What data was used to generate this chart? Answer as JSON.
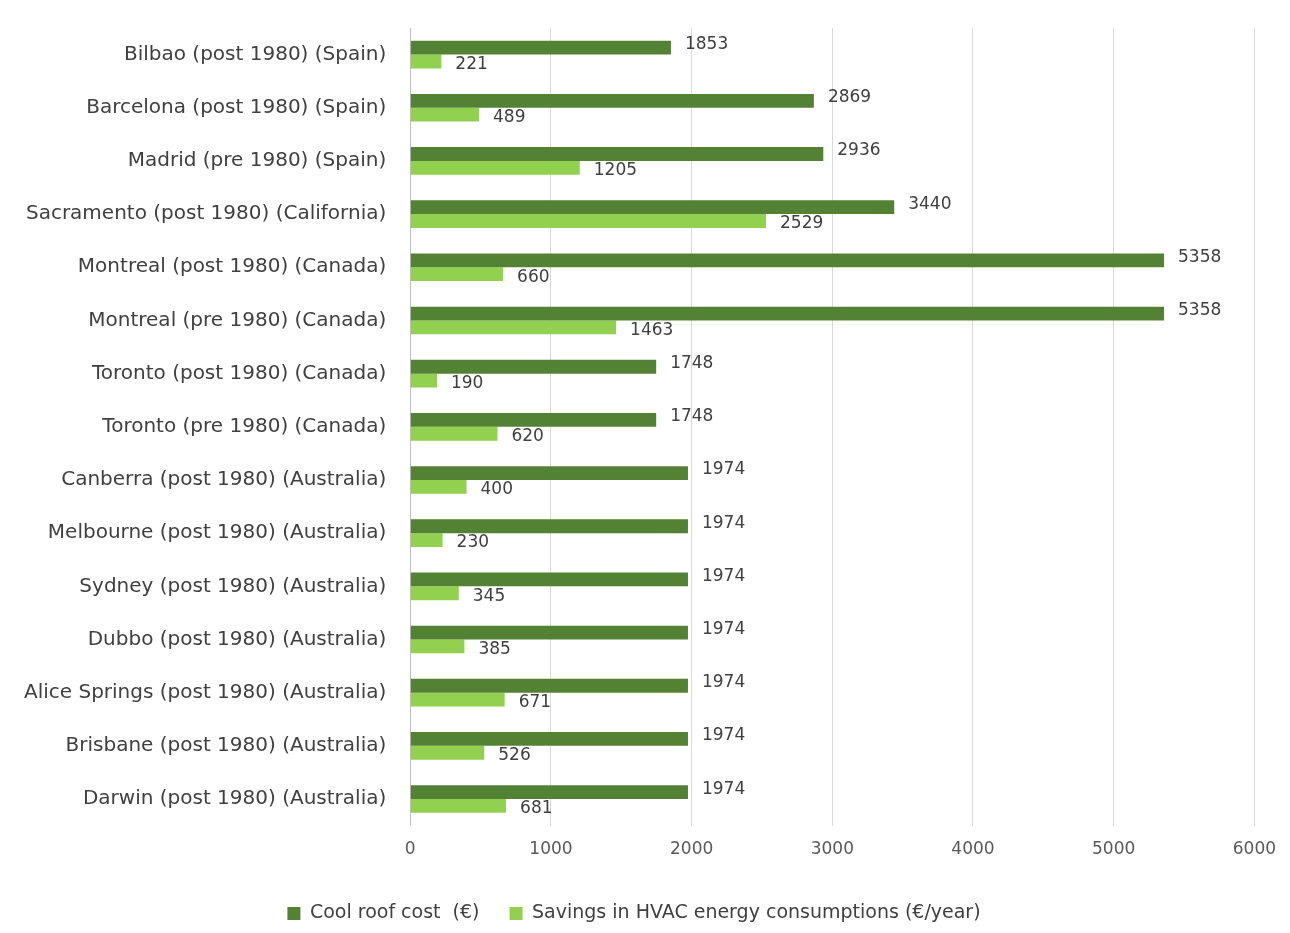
{
  "chart_data": {
    "type": "bar",
    "orientation": "horizontal",
    "categories": [
      "Bilbao (post 1980) (Spain)",
      "Barcelona (post 1980) (Spain)",
      "Madrid (pre 1980) (Spain)",
      "Sacramento (post 1980) (California)",
      "Montreal (post 1980) (Canada)",
      "Montreal (pre 1980) (Canada)",
      "Toronto (post 1980) (Canada)",
      "Toronto (pre 1980) (Canada)",
      "Canberra (post 1980) (Australia)",
      "Melbourne (post 1980) (Australia)",
      "Sydney (post 1980) (Australia)",
      "Dubbo (post 1980) (Australia)",
      "Alice Springs (post 1980) (Australia)",
      "Brisbane (post 1980) (Australia)",
      "Darwin (post 1980) (Australia)"
    ],
    "series": [
      {
        "name": "Cool roof cost  (€)",
        "color": "#548235",
        "values": [
          1853,
          2869,
          2936,
          3440,
          5358,
          5358,
          1748,
          1748,
          1974,
          1974,
          1974,
          1974,
          1974,
          1974,
          1974
        ]
      },
      {
        "name": "Savings in HVAC energy consumptions (€/year)",
        "color": "#92d050",
        "values": [
          221,
          489,
          1205,
          2529,
          660,
          1463,
          190,
          620,
          400,
          230,
          345,
          385,
          671,
          526,
          681
        ]
      }
    ],
    "xlim": [
      0,
      6000
    ],
    "xticks": [
      0,
      1000,
      2000,
      3000,
      4000,
      5000,
      6000
    ],
    "grid": "x",
    "legend": "bottom",
    "data_labels": true
  }
}
